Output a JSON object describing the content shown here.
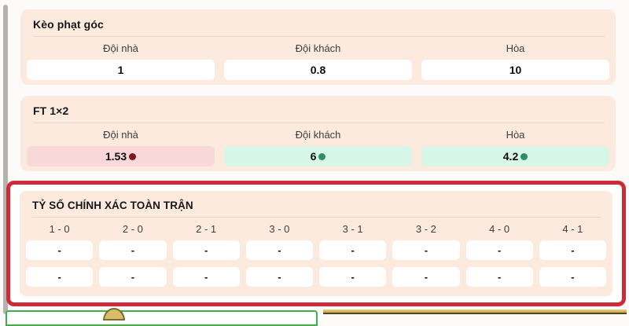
{
  "sections": [
    {
      "title": "Kèo phạt góc",
      "columns": [
        {
          "label": "Đội nhà",
          "value": "1"
        },
        {
          "label": "Đội khách",
          "value": "0.8"
        },
        {
          "label": "Hòa",
          "value": "10"
        }
      ]
    },
    {
      "title": "FT 1×2",
      "columns": [
        {
          "label": "Đội nhà",
          "value": "1.53",
          "trend": "down"
        },
        {
          "label": "Đội khách",
          "value": "6",
          "trend": "up"
        },
        {
          "label": "Hòa",
          "value": "4.2",
          "trend": "up"
        }
      ]
    },
    {
      "title": "TỶ SỐ CHÍNH XÁC TOÀN TRẬN",
      "highlighted": true,
      "score_columns": [
        "1 - 0",
        "2 - 0",
        "2 - 1",
        "3 - 0",
        "3 - 1",
        "3 - 2",
        "4 - 0",
        "4 - 1"
      ],
      "rows": [
        [
          "-",
          "-",
          "-",
          "-",
          "-",
          "-",
          "-",
          "-"
        ],
        [
          "-",
          "-",
          "-",
          "-",
          "-",
          "-",
          "-",
          "-"
        ]
      ]
    }
  ],
  "colors": {
    "page_background": "#fdfbf9",
    "card_background": "#fceade",
    "highlight_border": "#ce2b39",
    "odds_down_background": "#f8d8d8",
    "odds_down_dot": "#7c1b1b",
    "odds_up_background": "#d8f6e7",
    "odds_up_dot": "#2e8f67",
    "banner_green_border": "#3fae4f",
    "banner_gold": "#cfae55"
  },
  "decorations": {
    "scrollbar": "vertical-gray-strip-left",
    "bottom_left_banner": "green-bordered-banner-top-edge",
    "bottom_right_banner": "gold-strip-top-edge"
  }
}
